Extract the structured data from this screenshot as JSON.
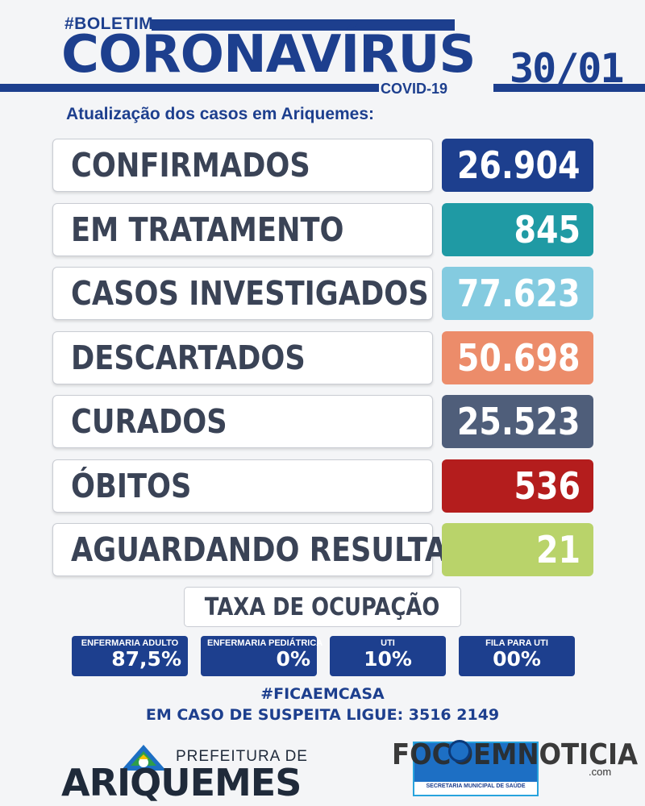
{
  "header": {
    "hashtag": "#BOLETIM",
    "title": "CORONAVÍRUS",
    "subtitle_tag": "COVID-19",
    "date": "30/01",
    "update_text": "Atualização dos casos em Ariquemes:"
  },
  "rows": [
    {
      "label": "CONFIRMADOS",
      "value": "26.904",
      "color": "#1d3f8e"
    },
    {
      "label": "EM TRATAMENTO",
      "value": "845",
      "color": "#1f9aa4"
    },
    {
      "label": "CASOS INVESTIGADOS",
      "value": "77.623",
      "color": "#84cbe0"
    },
    {
      "label": "DESCARTADOS",
      "value": "50.698",
      "color": "#ec8c6a"
    },
    {
      "label": "CURADOS",
      "value": "25.523",
      "color": "#4f5e7a"
    },
    {
      "label": "ÓBITOS",
      "value": "536",
      "color": "#b41d1d"
    },
    {
      "label": "AGUARDANDO RESULTADO",
      "value": "21",
      "color": "#b9d36a"
    }
  ],
  "occupancy": {
    "title": "TAXA DE OCUPAÇÃO",
    "items": [
      {
        "label": "ENFERMARIA ADULTO",
        "value": "87,5%"
      },
      {
        "label": "ENFERMARIA PEDIÁTRICA",
        "value": "0%"
      },
      {
        "label": "UTI",
        "value": "10%"
      },
      {
        "label": "FILA PARA UTI",
        "value": "00%"
      }
    ]
  },
  "footer": {
    "hashtag": "#FICAEMCASA",
    "phone_text": "EM CASO DE SUSPEITA LIGUE: 3516 2149",
    "prefeitura_line1": "PREFEITURA DE",
    "prefeitura_line2": "ARIQUEMES",
    "semsau_caption": "SECRETARIA MUNICIPAL DE SAÚDE",
    "watermark": "FOCOEMNOTICIA",
    "watermark_suffix": ".com"
  }
}
